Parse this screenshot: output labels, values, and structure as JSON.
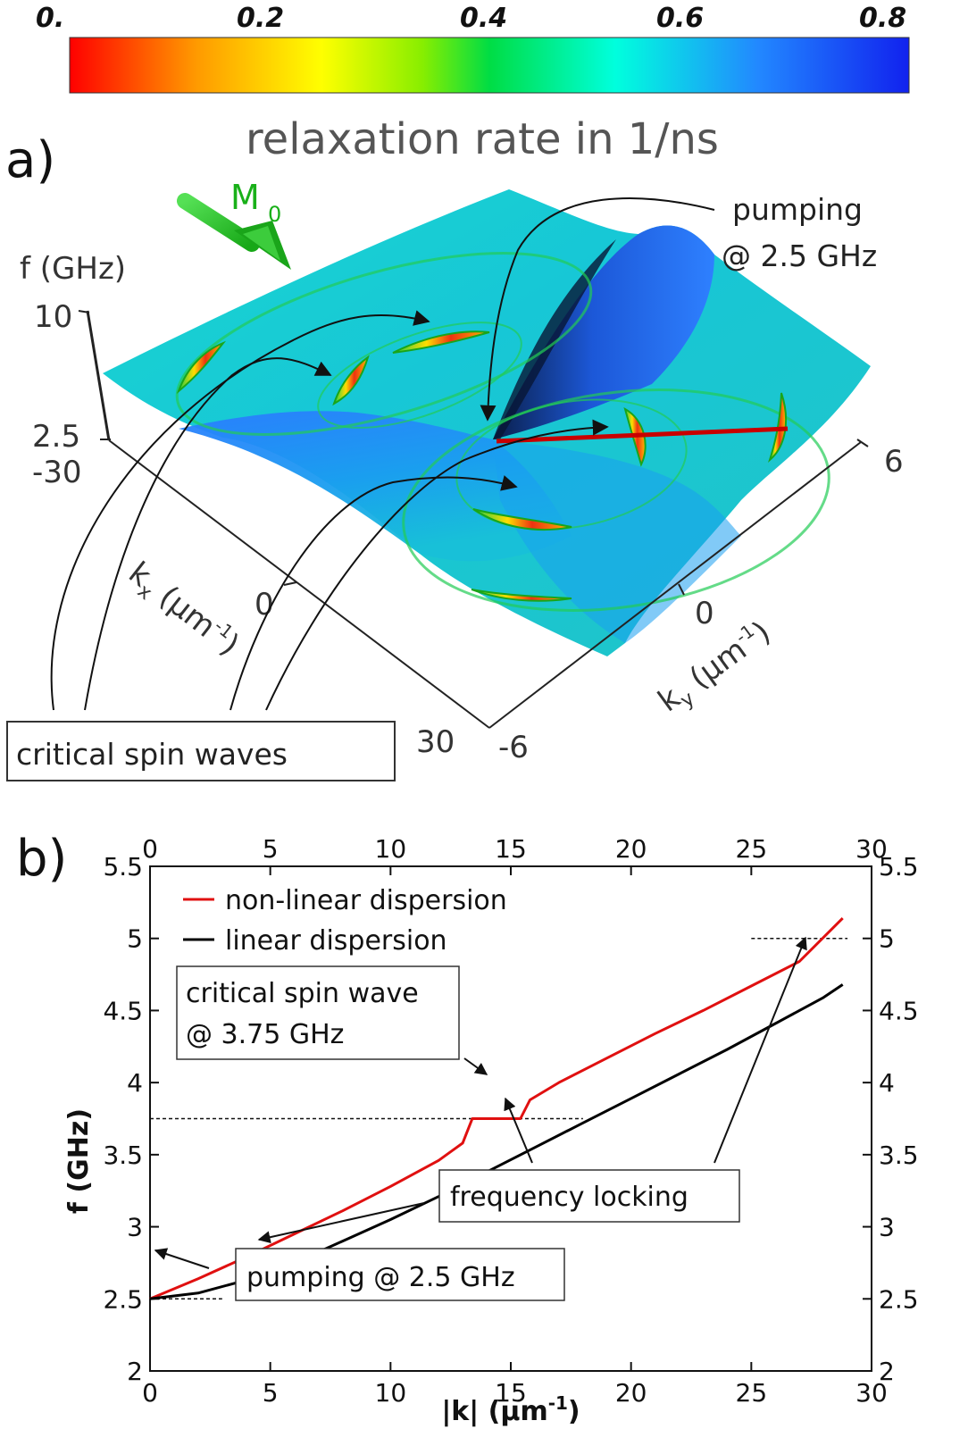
{
  "colorbar": {
    "ticks": [
      "0.",
      "0.2",
      "0.4",
      "0.6",
      "0.8"
    ],
    "title": "relaxation rate in 1/ns",
    "colors": [
      "#ff0000",
      "#ff9900",
      "#ffff00",
      "#88ee00",
      "#00dd44",
      "#00ffdd",
      "#2288ff",
      "#1122ee"
    ]
  },
  "panel_a": {
    "label": "a)",
    "magnetization_label": "M",
    "magnetization_sub": "0",
    "f_axis_label": "f (GHz)",
    "f_ticks": [
      "10",
      "2.5"
    ],
    "kx_axis": {
      "label": "k",
      "sub": "x",
      "unit": " (μm",
      "sup": "-1",
      "close": ")",
      "ticks": [
        "-30",
        "0",
        "30"
      ]
    },
    "ky_axis": {
      "label": "k",
      "sub": "y",
      "unit": " (μm",
      "sup": "-1",
      "close": ")",
      "ticks": [
        "6",
        "0",
        "-6"
      ]
    },
    "pumping_line1": "pumping",
    "pumping_line2": "@ 2.5 GHz",
    "critical_box": "critical spin waves"
  },
  "panel_b": {
    "label": "b)",
    "annotations": {
      "critical_line1": "critical spin wave",
      "critical_line2": "@ 3.75 GHz",
      "frequency_locking": "frequency locking",
      "pumping": "pumping @ 2.5 GHz"
    }
  },
  "chart_data": {
    "type": "line",
    "xlabel": "|k| (μm",
    "xlabel_sup": "-1",
    "xlabel_close": ")",
    "ylabel": "f (GHz)",
    "xlim": [
      0,
      30
    ],
    "ylim": [
      2,
      5.5
    ],
    "xticks": [
      0,
      5,
      10,
      15,
      20,
      25,
      30
    ],
    "yticks": [
      2,
      2.5,
      3,
      3.5,
      4,
      4.5,
      5,
      5.5
    ],
    "xtick_labels": [
      "0",
      "5",
      "10",
      "15",
      "20",
      "25",
      "30"
    ],
    "ytick_labels": [
      "2",
      "2.5",
      "3",
      "3.5",
      "4",
      "4.5",
      "5",
      "5.5"
    ],
    "series": [
      {
        "name": "non-linear dispersion",
        "color": "#e01010",
        "x": [
          0,
          2,
          4,
          6,
          8,
          10,
          12,
          13,
          13.4,
          15.4,
          15.8,
          17,
          19,
          21,
          23,
          25,
          27,
          28.8
        ],
        "y": [
          2.5,
          2.64,
          2.79,
          2.95,
          3.11,
          3.28,
          3.46,
          3.58,
          3.75,
          3.75,
          3.88,
          4.0,
          4.17,
          4.34,
          4.5,
          4.67,
          4.84,
          5.14
        ]
      },
      {
        "name": "linear dispersion",
        "color": "#000000",
        "x": [
          0,
          2,
          4,
          6,
          8,
          10,
          12,
          14,
          16,
          18,
          20,
          22,
          24,
          26,
          28,
          28.8
        ],
        "y": [
          2.5,
          2.54,
          2.63,
          2.75,
          2.9,
          3.05,
          3.21,
          3.38,
          3.55,
          3.72,
          3.89,
          4.06,
          4.23,
          4.41,
          4.59,
          4.68
        ]
      }
    ],
    "reference_lines": [
      {
        "y": 2.5,
        "x": [
          0,
          3
        ]
      },
      {
        "y": 3.75,
        "x": [
          0,
          18
        ]
      },
      {
        "y": 5.0,
        "x": [
          25,
          29
        ]
      }
    ]
  }
}
